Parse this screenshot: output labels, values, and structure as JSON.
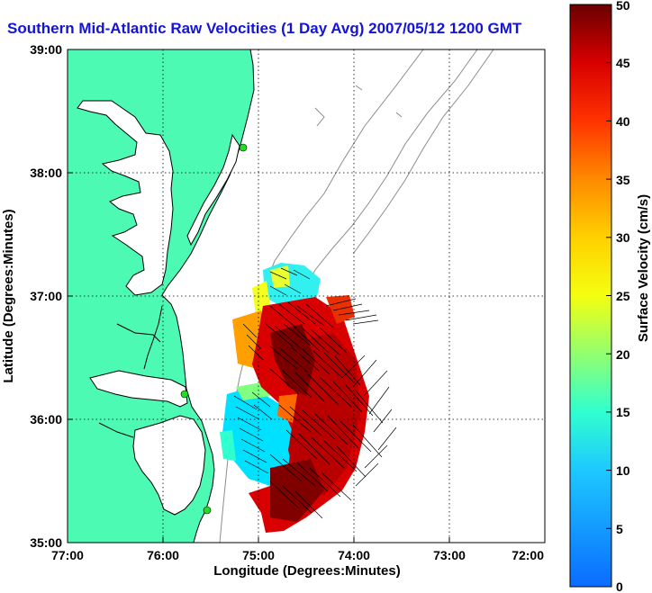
{
  "chart_data": {
    "type": "heatmap",
    "title": "Southern Mid-Atlantic Raw Velocities (1 Day Avg) 2007/05/12 1200 GMT",
    "xlabel": "Longitude (Degrees:Minutes)",
    "ylabel": "Latitude (Degrees:Minutes)",
    "x_ticks": [
      "77:00",
      "76:00",
      "75:00",
      "74:00",
      "73:00",
      "72:00"
    ],
    "y_ticks": [
      "39:00",
      "38:00",
      "37:00",
      "36:00",
      "35:00"
    ],
    "xlim": [
      -77,
      -72
    ],
    "ylim": [
      35,
      39
    ],
    "grid": true,
    "colorbar": {
      "label": "Surface Velocity (cm/s)",
      "range": [
        0,
        50
      ],
      "ticks": [
        "50",
        "45",
        "40",
        "35",
        "30",
        "25",
        "20",
        "15",
        "10",
        "5",
        "0"
      ]
    },
    "colors": {
      "land": "#4dfab4",
      "coast": "#000000",
      "bathymetry": "#8c8c8c",
      "title": "#1414d8",
      "station": "#22dd22"
    },
    "stations": [
      {
        "lon": -75.15,
        "lat": 38.28
      },
      {
        "lon": -75.55,
        "lat": 36.15
      },
      {
        "lon": -75.42,
        "lat": 35.27
      }
    ]
  }
}
